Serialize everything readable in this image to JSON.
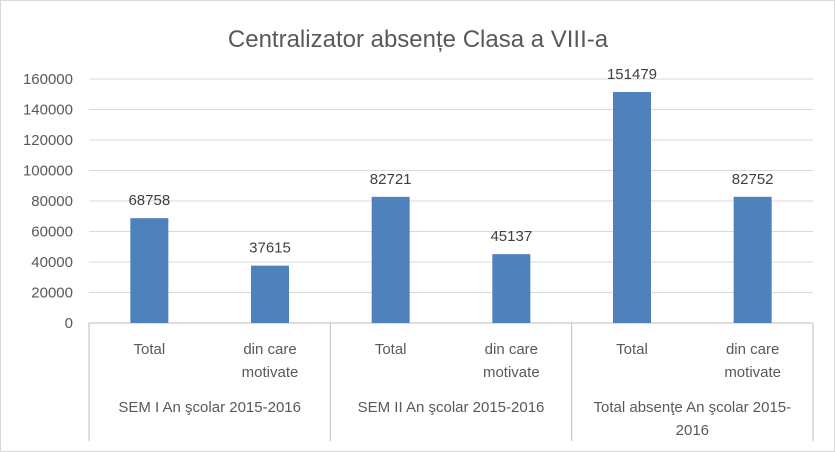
{
  "chart_data": {
    "type": "bar",
    "title": "Centralizator absențe Clasa a VIII-a",
    "xlabel": "",
    "ylabel": "",
    "ylim": [
      0,
      160000
    ],
    "yticks": [
      0,
      20000,
      40000,
      60000,
      80000,
      100000,
      120000,
      140000,
      160000
    ],
    "grid": true,
    "legend": "none",
    "color": "#4f81bd",
    "groups": [
      {
        "label_lines": [
          "SEM I An şcolar 2015-2016"
        ]
      },
      {
        "label_lines": [
          "SEM II An şcolar 2015-2016"
        ]
      },
      {
        "label_lines": [
          "Total absenţe An şcolar 2015-",
          "2016"
        ]
      }
    ],
    "categories": [
      {
        "group": 0,
        "label_lines": [
          "Total"
        ]
      },
      {
        "group": 0,
        "label_lines": [
          "din care",
          "motivate"
        ]
      },
      {
        "group": 1,
        "label_lines": [
          "Total"
        ]
      },
      {
        "group": 1,
        "label_lines": [
          "din care",
          "motivate"
        ]
      },
      {
        "group": 2,
        "label_lines": [
          "Total"
        ]
      },
      {
        "group": 2,
        "label_lines": [
          "din care",
          "motivate"
        ]
      }
    ],
    "values": [
      68758,
      37615,
      82721,
      45137,
      151479,
      82752
    ]
  }
}
